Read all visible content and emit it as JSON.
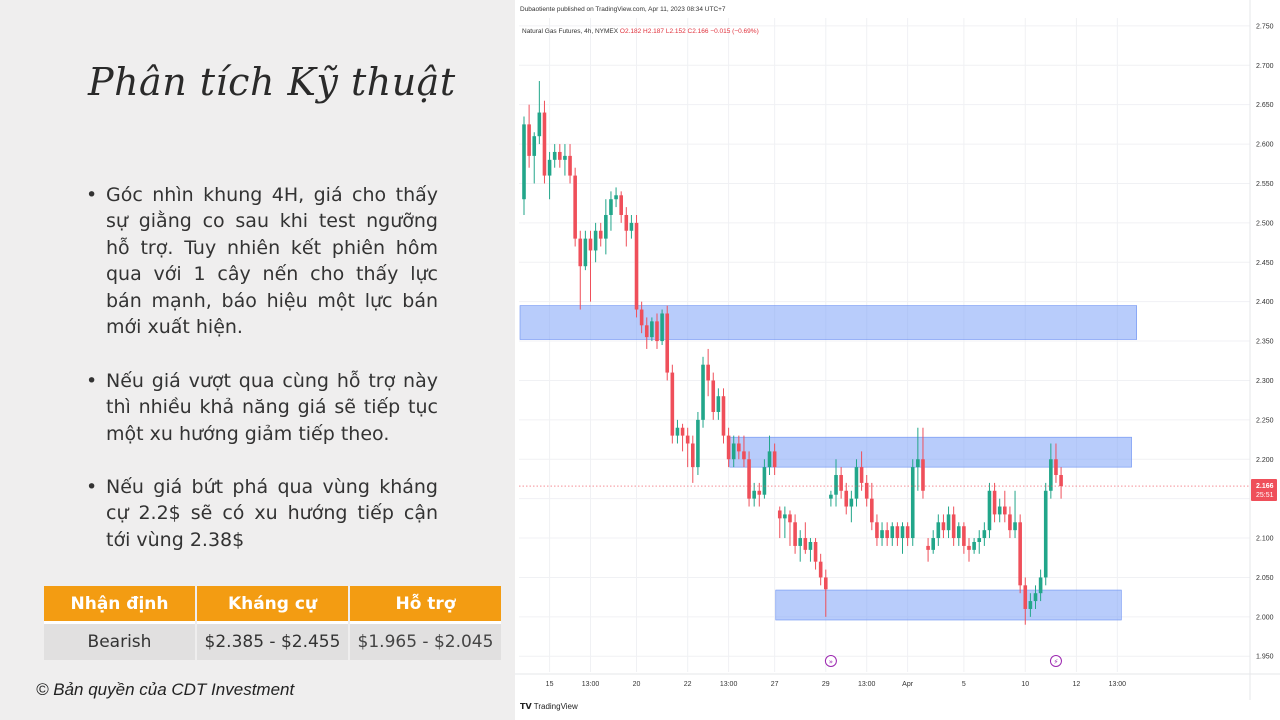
{
  "slide": {
    "title": "Phân tích Kỹ thuật",
    "bullets": [
      "Góc nhìn khung 4H, giá cho thấy sự giằng co sau khi test ngưỡng hỗ trợ. Tuy nhiên kết phiên hôm qua với 1 cây nến cho thấy lực bán mạnh, báo hiệu một lực bán mới xuất hiện.",
      "Nếu giá vượt qua cùng hỗ trợ này thì nhiều khả năng giá sẽ tiếp tục một xu hướng giảm tiếp theo.",
      "Nếu giá bứt phá qua vùng kháng cự 2.2$ sẽ có xu hướng tiếp cận tới vùng 2.38$"
    ],
    "table": {
      "headers": [
        "Nhận định",
        "Kháng cự",
        "Hỗ trợ"
      ],
      "row": [
        "Bearish",
        "$2.385 - $2.455",
        "$1.965 - $2.045"
      ]
    },
    "copyright": "© Bản quyền của CDT Investment",
    "colors": {
      "header_orange": "#f39c12",
      "cell_grey": "#e1e0e0",
      "text": "#333333"
    }
  },
  "tradingview": {
    "published_line": "Dubaotiente published on TradingView.com, Apr 11, 2023 08:34 UTC+7",
    "symbol": "Natural Gas Futures, 4h, NYMEX",
    "ohlc": {
      "o": "O2.182",
      "h": "H2.187",
      "l": "L2.152",
      "c": "C2.166",
      "change": "−0.015 (−0.69%)"
    },
    "last_price": "2.166",
    "countdown": "25:51",
    "logo_text": "TradingView",
    "marker_icons": [
      "forward-event-icon",
      "flash-event-icon"
    ]
  },
  "chart_data": {
    "type": "candlestick",
    "title": "Natural Gas Futures, 4h, NYMEX",
    "ylim": [
      1.93,
      2.76
    ],
    "y_ticks": [
      "2.750",
      "2.700",
      "2.650",
      "2.600",
      "2.550",
      "2.500",
      "2.450",
      "2.400",
      "2.350",
      "2.300",
      "2.250",
      "2.200",
      "2.150",
      "2.100",
      "2.050",
      "2.000",
      "1.950"
    ],
    "x_ticks": [
      {
        "label": "15",
        "bar": 5
      },
      {
        "label": "13:00",
        "bar": 13
      },
      {
        "label": "20",
        "bar": 22
      },
      {
        "label": "22",
        "bar": 32
      },
      {
        "label": "13:00",
        "bar": 40
      },
      {
        "label": "27",
        "bar": 49
      },
      {
        "label": "29",
        "bar": 59
      },
      {
        "label": "13:00",
        "bar": 67
      },
      {
        "label": "Apr",
        "bar": 75
      },
      {
        "label": "5",
        "bar": 86
      },
      {
        "label": "10",
        "bar": 98
      },
      {
        "label": "12",
        "bar": 108
      },
      {
        "label": "13:00",
        "bar": 116
      }
    ],
    "zones": [
      {
        "name": "resistance",
        "from_bar": 0,
        "to_bar": 119,
        "low": 2.352,
        "high": 2.395
      },
      {
        "name": "mid",
        "from_bar": 41,
        "to_bar": 118,
        "low": 2.19,
        "high": 2.228
      },
      {
        "name": "support",
        "from_bar": 50,
        "to_bar": 116,
        "low": 1.996,
        "high": 2.034
      }
    ],
    "last_price": 2.166,
    "events": [
      {
        "bar": 60,
        "icon": "forward-event-icon"
      },
      {
        "bar": 104,
        "icon": "flash-event-icon"
      }
    ],
    "candles": [
      [
        2.53,
        2.635,
        2.51,
        2.625
      ],
      [
        2.625,
        2.65,
        2.57,
        2.585
      ],
      [
        2.585,
        2.615,
        2.55,
        2.61
      ],
      [
        2.61,
        2.68,
        2.6,
        2.64
      ],
      [
        2.64,
        2.655,
        2.55,
        2.56
      ],
      [
        2.56,
        2.59,
        2.53,
        2.58
      ],
      [
        2.58,
        2.6,
        2.57,
        2.59
      ],
      [
        2.59,
        2.6,
        2.57,
        2.58
      ],
      [
        2.58,
        2.6,
        2.56,
        2.585
      ],
      [
        2.585,
        2.6,
        2.55,
        2.56
      ],
      [
        2.56,
        2.57,
        2.47,
        2.48
      ],
      [
        2.48,
        2.49,
        2.39,
        2.445
      ],
      [
        2.445,
        2.49,
        2.44,
        2.48
      ],
      [
        2.48,
        2.49,
        2.4,
        2.465
      ],
      [
        2.465,
        2.5,
        2.45,
        2.49
      ],
      [
        2.49,
        2.5,
        2.47,
        2.48
      ],
      [
        2.48,
        2.53,
        2.46,
        2.51
      ],
      [
        2.51,
        2.54,
        2.49,
        2.53
      ],
      [
        2.53,
        2.545,
        2.52,
        2.535
      ],
      [
        2.535,
        2.54,
        2.5,
        2.51
      ],
      [
        2.51,
        2.52,
        2.47,
        2.49
      ],
      [
        2.49,
        2.51,
        2.48,
        2.5
      ],
      [
        2.5,
        2.51,
        2.38,
        2.39
      ],
      [
        2.39,
        2.4,
        2.36,
        2.37
      ],
      [
        2.37,
        2.38,
        2.34,
        2.355
      ],
      [
        2.355,
        2.38,
        2.35,
        2.375
      ],
      [
        2.375,
        2.385,
        2.34,
        2.35
      ],
      [
        2.35,
        2.39,
        2.345,
        2.385
      ],
      [
        2.385,
        2.395,
        2.3,
        2.31
      ],
      [
        2.31,
        2.32,
        2.22,
        2.23
      ],
      [
        2.23,
        2.25,
        2.22,
        2.24
      ],
      [
        2.24,
        2.245,
        2.21,
        2.23
      ],
      [
        2.23,
        2.24,
        2.19,
        2.22
      ],
      [
        2.22,
        2.23,
        2.17,
        2.19
      ],
      [
        2.19,
        2.26,
        2.18,
        2.25
      ],
      [
        2.25,
        2.33,
        2.24,
        2.32
      ],
      [
        2.32,
        2.34,
        2.28,
        2.3
      ],
      [
        2.3,
        2.31,
        2.25,
        2.26
      ],
      [
        2.26,
        2.29,
        2.25,
        2.28
      ],
      [
        2.28,
        2.29,
        2.22,
        2.23
      ],
      [
        2.23,
        2.24,
        2.19,
        2.2
      ],
      [
        2.2,
        2.23,
        2.19,
        2.22
      ],
      [
        2.22,
        2.23,
        2.2,
        2.21
      ],
      [
        2.21,
        2.23,
        2.19,
        2.2
      ],
      [
        2.2,
        2.21,
        2.14,
        2.15
      ],
      [
        2.15,
        2.17,
        2.14,
        2.16
      ],
      [
        2.16,
        2.17,
        2.14,
        2.155
      ],
      [
        2.155,
        2.2,
        2.15,
        2.19
      ],
      [
        2.19,
        2.23,
        2.18,
        2.21
      ],
      [
        2.21,
        2.22,
        2.18,
        2.19
      ],
      [
        2.135,
        2.14,
        2.1,
        2.125
      ],
      [
        2.125,
        2.14,
        2.1,
        2.13
      ],
      [
        2.13,
        2.135,
        2.09,
        2.12
      ],
      [
        2.12,
        2.13,
        2.08,
        2.09
      ],
      [
        2.09,
        2.11,
        2.07,
        2.1
      ],
      [
        2.1,
        2.12,
        2.08,
        2.085
      ],
      [
        2.085,
        2.1,
        2.07,
        2.095
      ],
      [
        2.095,
        2.1,
        2.06,
        2.07
      ],
      [
        2.07,
        2.08,
        2.04,
        2.05
      ],
      [
        2.05,
        2.06,
        2.0,
        2.035
      ],
      [
        2.15,
        2.16,
        2.14,
        2.155
      ],
      [
        2.155,
        2.2,
        2.14,
        2.18
      ],
      [
        2.18,
        2.19,
        2.15,
        2.16
      ],
      [
        2.16,
        2.17,
        2.13,
        2.14
      ],
      [
        2.14,
        2.16,
        2.12,
        2.15
      ],
      [
        2.15,
        2.2,
        2.14,
        2.19
      ],
      [
        2.19,
        2.21,
        2.16,
        2.17
      ],
      [
        2.17,
        2.18,
        2.14,
        2.15
      ],
      [
        2.15,
        2.17,
        2.11,
        2.12
      ],
      [
        2.12,
        2.13,
        2.09,
        2.1
      ],
      [
        2.1,
        2.12,
        2.09,
        2.11
      ],
      [
        2.11,
        2.12,
        2.09,
        2.1
      ],
      [
        2.1,
        2.12,
        2.09,
        2.115
      ],
      [
        2.115,
        2.12,
        2.09,
        2.1
      ],
      [
        2.1,
        2.12,
        2.08,
        2.115
      ],
      [
        2.115,
        2.12,
        2.09,
        2.1
      ],
      [
        2.1,
        2.2,
        2.09,
        2.19
      ],
      [
        2.19,
        2.24,
        2.16,
        2.2
      ],
      [
        2.2,
        2.24,
        2.15,
        2.16
      ],
      [
        2.09,
        2.1,
        2.07,
        2.085
      ],
      [
        2.085,
        2.11,
        2.08,
        2.1
      ],
      [
        2.1,
        2.13,
        2.09,
        2.12
      ],
      [
        2.12,
        2.13,
        2.1,
        2.11
      ],
      [
        2.11,
        2.14,
        2.1,
        2.13
      ],
      [
        2.13,
        2.14,
        2.09,
        2.1
      ],
      [
        2.1,
        2.12,
        2.09,
        2.115
      ],
      [
        2.115,
        2.12,
        2.08,
        2.09
      ],
      [
        2.09,
        2.1,
        2.07,
        2.085
      ],
      [
        2.085,
        2.1,
        2.08,
        2.095
      ],
      [
        2.095,
        2.11,
        2.08,
        2.1
      ],
      [
        2.1,
        2.12,
        2.09,
        2.11
      ],
      [
        2.11,
        2.17,
        2.1,
        2.16
      ],
      [
        2.16,
        2.17,
        2.12,
        2.13
      ],
      [
        2.13,
        2.15,
        2.12,
        2.14
      ],
      [
        2.14,
        2.16,
        2.12,
        2.13
      ],
      [
        2.13,
        2.14,
        2.1,
        2.11
      ],
      [
        2.11,
        2.16,
        2.1,
        2.12
      ],
      [
        2.12,
        2.13,
        2.03,
        2.04
      ],
      [
        2.04,
        2.05,
        1.99,
        2.01
      ],
      [
        2.01,
        2.03,
        2.0,
        2.02
      ],
      [
        2.02,
        2.04,
        2.01,
        2.03
      ],
      [
        2.03,
        2.06,
        2.02,
        2.05
      ],
      [
        2.05,
        2.17,
        2.04,
        2.16
      ],
      [
        2.16,
        2.22,
        2.15,
        2.2
      ],
      [
        2.2,
        2.22,
        2.17,
        2.18
      ],
      [
        2.18,
        2.19,
        2.15,
        2.166
      ]
    ]
  }
}
